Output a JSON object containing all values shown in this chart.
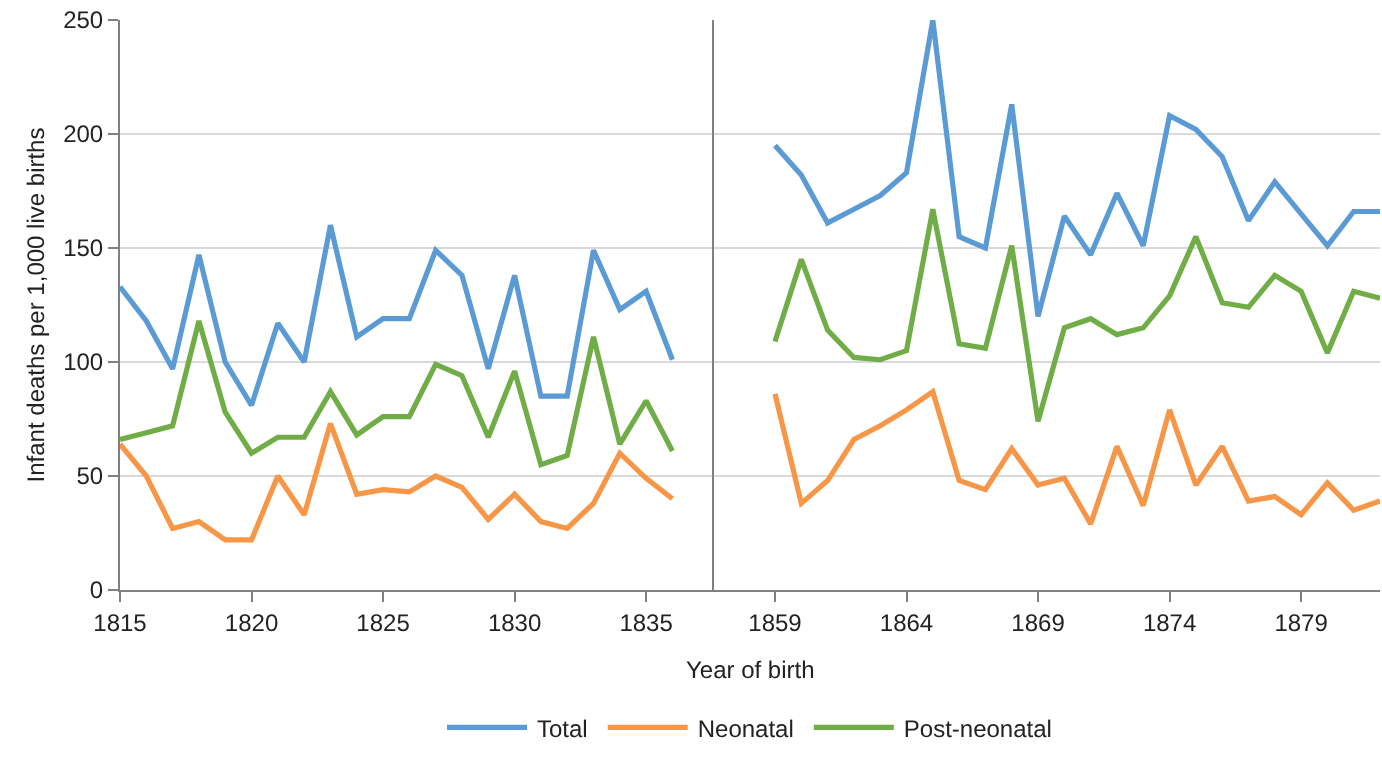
{
  "chart_data": [
    {
      "type": "line",
      "ylabel": "Infant deaths per 1,000 live births",
      "xlabel": "Year of birth",
      "x": [
        1815,
        1816,
        1817,
        1818,
        1819,
        1820,
        1821,
        1822,
        1823,
        1824,
        1825,
        1826,
        1827,
        1828,
        1829,
        1830,
        1831,
        1832,
        1833,
        1834,
        1835,
        1836
      ],
      "series": [
        {
          "name": "Total",
          "color": "#5b9bd5",
          "values": [
            133,
            118,
            97,
            147,
            100,
            81,
            117,
            100,
            160,
            111,
            119,
            119,
            149,
            138,
            97,
            138,
            85,
            85,
            149,
            123,
            131,
            101
          ]
        },
        {
          "name": "Neonatal",
          "color": "#f79646",
          "values": [
            64,
            50,
            27,
            30,
            22,
            22,
            50,
            33,
            73,
            42,
            44,
            43,
            50,
            45,
            31,
            42,
            30,
            27,
            38,
            60,
            49,
            40
          ]
        },
        {
          "name": "Post-neonatal",
          "color": "#70ad47",
          "values": [
            66,
            69,
            72,
            118,
            78,
            60,
            67,
            67,
            87,
            68,
            76,
            76,
            99,
            94,
            67,
            96,
            55,
            59,
            111,
            64,
            83,
            61
          ]
        }
      ],
      "xlim": [
        1815,
        1837.6
      ],
      "xticks": [
        1815,
        1820,
        1825,
        1830,
        1835
      ],
      "ylim": [
        0,
        250
      ],
      "yticks": [
        0,
        50,
        100,
        150,
        200,
        250
      ],
      "grid": "y",
      "legend": "bottom"
    },
    {
      "type": "line",
      "x": [
        1859,
        1860,
        1861,
        1862,
        1863,
        1864,
        1865,
        1866,
        1867,
        1868,
        1869,
        1870,
        1871,
        1872,
        1873,
        1874,
        1875,
        1876,
        1877,
        1878,
        1879,
        1880,
        1881,
        1882
      ],
      "series": [
        {
          "color": "#5b9bd5",
          "values": [
            195,
            182,
            161,
            167,
            173,
            183,
            250,
            155,
            150,
            213,
            120,
            164,
            147,
            174,
            151,
            208,
            202,
            190,
            162,
            179,
            165,
            151,
            166,
            166
          ]
        },
        {
          "color": "#f79646",
          "values": [
            86,
            38,
            48,
            66,
            72,
            79,
            87,
            48,
            44,
            62,
            46,
            49,
            29,
            63,
            37,
            79,
            46,
            63,
            39,
            41,
            33,
            47,
            35,
            39
          ]
        },
        {
          "color": "#70ad47",
          "values": [
            109,
            145,
            114,
            102,
            101,
            105,
            167,
            108,
            106,
            151,
            74,
            115,
            119,
            112,
            115,
            129,
            155,
            126,
            124,
            138,
            131,
            104,
            131,
            128
          ]
        }
      ],
      "xlim": [
        1856.7,
        1882
      ],
      "xticks": [
        1859,
        1864,
        1869,
        1874,
        1879
      ],
      "ylim": [
        0,
        250
      ],
      "yticks": [
        0,
        50,
        100,
        150,
        200,
        250
      ],
      "grid": "y",
      "tick_labels": "x"
    }
  ]
}
